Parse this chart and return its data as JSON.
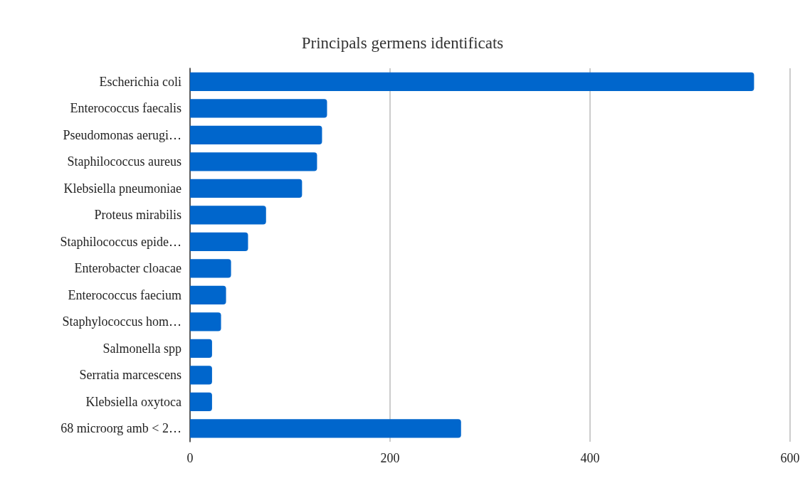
{
  "chart_data": {
    "type": "bar",
    "orientation": "horizontal",
    "title": "Principals germens identificats",
    "categories": [
      "Escherichia coli",
      "Enterococcus faecalis",
      "Pseudomonas aerugi…",
      "Staphilococcus aureus",
      "Klebsiella pneumoniae",
      "Proteus mirabilis",
      "Staphilococcus epide…",
      "Enterobacter cloacae",
      "Enterococcus faecium",
      "Staphylococcus hom…",
      "Salmonella spp",
      "Serratia marcescens",
      "Klebsiella oxytoca",
      "68 microorg amb < 2…"
    ],
    "values": [
      564,
      137,
      132,
      127,
      112,
      76,
      58,
      41,
      36,
      31,
      22,
      22,
      22,
      271
    ],
    "color": "#0066cc",
    "xlim": [
      0,
      600
    ],
    "xticks": [
      0,
      200,
      400,
      600
    ],
    "grid": "x"
  }
}
